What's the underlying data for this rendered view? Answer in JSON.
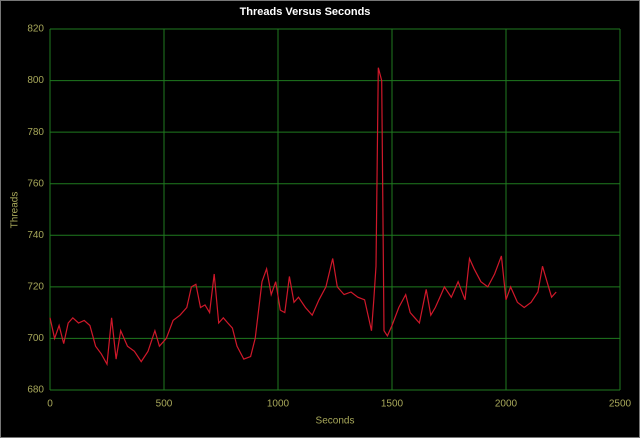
{
  "chart_data": {
    "type": "line",
    "title": "Threads Versus Seconds",
    "x_label": "Seconds",
    "y_label": "Threads",
    "x": [
      0,
      20,
      40,
      60,
      80,
      100,
      125,
      150,
      175,
      200,
      225,
      250,
      270,
      290,
      310,
      340,
      370,
      400,
      430,
      460,
      480,
      510,
      540,
      570,
      600,
      620,
      640,
      660,
      680,
      700,
      720,
      740,
      760,
      780,
      800,
      820,
      850,
      880,
      900,
      930,
      950,
      970,
      990,
      1010,
      1030,
      1050,
      1070,
      1090,
      1120,
      1150,
      1180,
      1210,
      1240,
      1260,
      1290,
      1320,
      1350,
      1380,
      1410,
      1420,
      1430,
      1440,
      1455,
      1465,
      1480,
      1500,
      1530,
      1560,
      1580,
      1600,
      1620,
      1650,
      1670,
      1690,
      1710,
      1730,
      1760,
      1790,
      1820,
      1840,
      1860,
      1890,
      1920,
      1950,
      1980,
      2000,
      2020,
      2050,
      2080,
      2110,
      2140,
      2160,
      2180,
      2200,
      2220
    ],
    "series": [
      {
        "name": "Threads",
        "color": "#d0182a",
        "values": [
          708,
          700,
          705,
          698,
          706,
          708,
          706,
          707,
          705,
          697,
          694,
          690,
          708,
          692,
          703,
          697,
          695,
          691,
          695,
          703,
          697,
          700,
          707,
          709,
          712,
          720,
          721,
          712,
          713,
          710,
          725,
          706,
          708,
          706,
          704,
          697,
          692,
          693,
          700,
          722,
          727,
          717,
          722,
          711,
          710,
          724,
          714,
          716,
          712,
          709,
          715,
          720,
          731,
          720,
          717,
          718,
          716,
          715,
          703,
          715,
          728,
          805,
          800,
          703,
          701,
          705,
          712,
          717,
          710,
          708,
          706,
          719,
          709,
          712,
          716,
          720,
          716,
          722,
          715,
          731,
          727,
          722,
          720,
          725,
          732,
          715,
          720,
          714,
          712,
          714,
          718,
          728,
          722,
          716,
          718
        ]
      }
    ],
    "xlim": [
      0,
      2500
    ],
    "xticks": [
      0,
      500,
      1000,
      1500,
      2000,
      2500
    ],
    "ylim": [
      680,
      820
    ],
    "yticks": [
      680,
      700,
      720,
      740,
      760,
      780,
      800,
      820
    ],
    "grid": true
  }
}
